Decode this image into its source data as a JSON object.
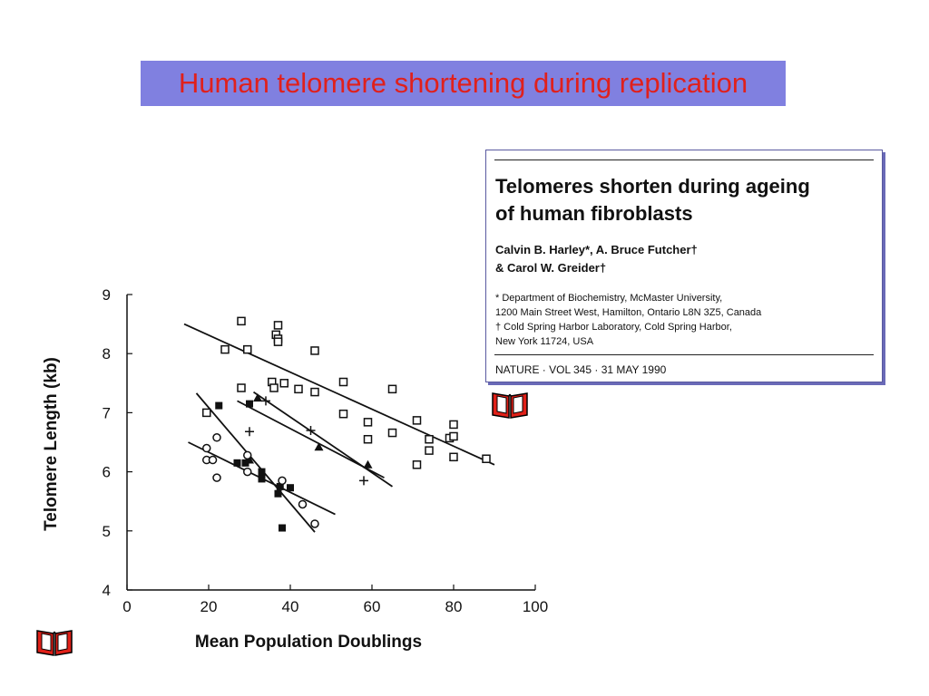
{
  "slide": {
    "title": "Human telomere shortening during replication"
  },
  "paper": {
    "title_lines": [
      "Telomeres shorten during ageing",
      "of human fibroblasts"
    ],
    "author_lines": [
      "Calvin B. Harley*, A. Bruce Futcher†",
      "& Carol W. Greider†"
    ],
    "affiliation_lines": [
      "* Department of Biochemistry, McMaster University,",
      "1200 Main Street West, Hamilton, Ontario L8N 3Z5, Canada",
      "† Cold Spring Harbor Laboratory, Cold Spring Harbor,",
      "New York 11724, USA"
    ],
    "journal": "NATURE  ·  VOL 345  ·  31 MAY 1990"
  },
  "icons": {
    "book": "open-book-icon",
    "book_color": "#e02018"
  },
  "chart_data": {
    "type": "scatter",
    "title": "",
    "xlabel": "Mean Population Doublings",
    "ylabel": "Telomere  Length  (kb)",
    "xlim": [
      0,
      100
    ],
    "ylim": [
      4,
      9
    ],
    "xticks": [
      0,
      20,
      40,
      60,
      80,
      100
    ],
    "yticks": [
      4,
      5,
      6,
      7,
      8,
      9
    ],
    "grid": false,
    "legend": "none",
    "series": [
      {
        "marker": "open-square",
        "points": [
          [
            28,
            8.55
          ],
          [
            37,
            8.48
          ],
          [
            36.5,
            8.32
          ],
          [
            37,
            8.25
          ],
          [
            24,
            8.07
          ],
          [
            29.5,
            8.07
          ],
          [
            46,
            8.05
          ],
          [
            37,
            8.2
          ],
          [
            35.5,
            7.52
          ],
          [
            38.5,
            7.5
          ],
          [
            53,
            7.52
          ],
          [
            28,
            7.42
          ],
          [
            36,
            7.42
          ],
          [
            42,
            7.4
          ],
          [
            46,
            7.35
          ],
          [
            65,
            7.4
          ],
          [
            53,
            6.98
          ],
          [
            59,
            6.84
          ],
          [
            71,
            6.87
          ],
          [
            80,
            6.8
          ],
          [
            65,
            6.66
          ],
          [
            74,
            6.55
          ],
          [
            79,
            6.57
          ],
          [
            59,
            6.55
          ],
          [
            80,
            6.6
          ],
          [
            74,
            6.36
          ],
          [
            80,
            6.25
          ],
          [
            88,
            6.22
          ],
          [
            71,
            6.12
          ],
          [
            19.5,
            7.0
          ]
        ],
        "fit": [
          [
            14,
            8.5
          ],
          [
            90,
            6.12
          ]
        ]
      },
      {
        "marker": "filled-triangle",
        "points": [
          [
            32,
            7.25
          ],
          [
            47,
            6.42
          ],
          [
            59,
            6.12
          ],
          [
            30,
            6.2
          ]
        ],
        "fit": [
          [
            27,
            7.2
          ],
          [
            63,
            5.9
          ]
        ]
      },
      {
        "marker": "plus",
        "points": [
          [
            30,
            6.68
          ],
          [
            34,
            7.2
          ],
          [
            45,
            6.7
          ],
          [
            58,
            5.85
          ]
        ],
        "fit": [
          [
            31,
            7.35
          ],
          [
            65,
            5.75
          ]
        ]
      },
      {
        "marker": "filled-square",
        "points": [
          [
            22.5,
            7.12
          ],
          [
            30,
            7.15
          ],
          [
            27,
            6.15
          ],
          [
            29,
            6.15
          ],
          [
            33,
            6.0
          ],
          [
            33,
            5.88
          ],
          [
            37.5,
            5.75
          ],
          [
            37,
            5.63
          ],
          [
            40,
            5.73
          ],
          [
            38,
            5.05
          ]
        ],
        "fit": [
          [
            17,
            7.33
          ],
          [
            46,
            4.98
          ]
        ]
      },
      {
        "marker": "open-circle",
        "points": [
          [
            19.5,
            6.4
          ],
          [
            22,
            6.58
          ],
          [
            19.5,
            6.2
          ],
          [
            21,
            6.2
          ],
          [
            22,
            5.9
          ],
          [
            29.5,
            6.28
          ],
          [
            29.5,
            6.0
          ],
          [
            38,
            5.85
          ],
          [
            43,
            5.45
          ],
          [
            46,
            5.12
          ]
        ],
        "fit": [
          [
            15,
            6.5
          ],
          [
            51,
            5.28
          ]
        ]
      }
    ]
  }
}
